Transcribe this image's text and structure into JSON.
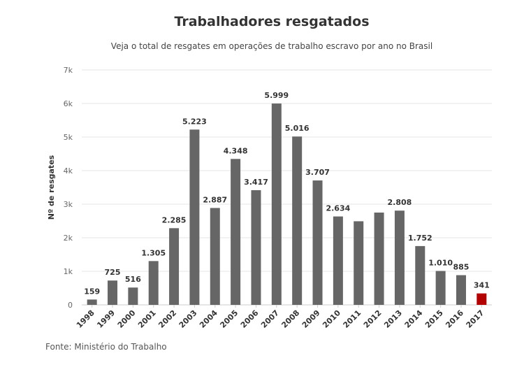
{
  "chart_data": {
    "type": "bar",
    "title": "Trabalhadores resgatados",
    "subtitle": "Veja o total de resgates em operações de trabalho escravo por ano no Brasil",
    "ylabel": "Nº de resgates",
    "xlabel": "",
    "ylim": [
      0,
      7000
    ],
    "yticks": [
      0,
      1000,
      2000,
      3000,
      4000,
      5000,
      6000,
      7000
    ],
    "ytick_labels": [
      "0",
      "1k",
      "2k",
      "3k",
      "4k",
      "5k",
      "6k",
      "7k"
    ],
    "categories": [
      "1998",
      "1999",
      "2000",
      "2001",
      "2002",
      "2003",
      "2004",
      "2005",
      "2006",
      "2007",
      "2008",
      "2009",
      "2010",
      "2011",
      "2012",
      "2013",
      "2014",
      "2015",
      "2016",
      "2017"
    ],
    "values": [
      159,
      725,
      516,
      1305,
      2285,
      5223,
      2887,
      4348,
      3417,
      5999,
      5016,
      3707,
      2634,
      2491,
      2750,
      2808,
      1752,
      1010,
      885,
      341
    ],
    "data_labels": [
      "159",
      "725",
      "516",
      "1.305",
      "2.285",
      "5.223",
      "2.887",
      "4.348",
      "3.417",
      "5.999",
      "5.016",
      "3.707",
      "2.634",
      "",
      "",
      "2.808",
      "1.752",
      "1.010",
      "885",
      "341"
    ],
    "grid": true,
    "legend": "none",
    "colors": {
      "bar": "#666666",
      "highlight": "#b30000",
      "grid": "#e6e6e6"
    },
    "highlight_index": 19,
    "source": "Fonte: Ministério do Trabalho"
  }
}
